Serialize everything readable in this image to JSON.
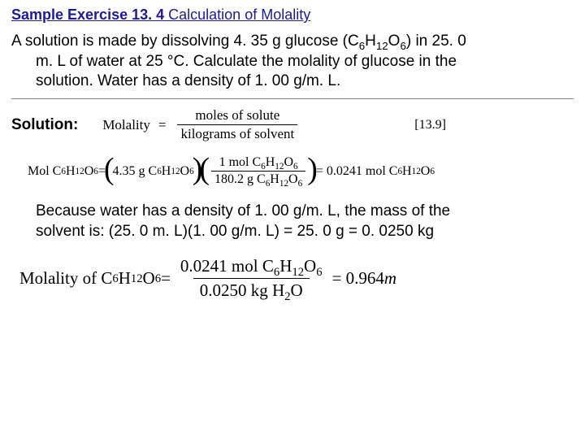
{
  "title": {
    "prefix_bold": "Sample Exercise 13. 4",
    "rest": " Calculation of Molality"
  },
  "problem": {
    "line1": "A solution is made by dissolving 4. 35 g glucose (C",
    "f_sub1": "6",
    "f_mid1": "H",
    "f_sub2": "12",
    "f_mid2": "O",
    "f_sub3": "6",
    "line1_end": ") in 25. 0",
    "line2": "m. L of water at 25 °C. Calculate the molality of glucose in the",
    "line3": "solution. Water has a density of 1. 00 g/m. L."
  },
  "solution_label": "Solution:",
  "molality_def": {
    "lhs": "Molality",
    "eq": "=",
    "num": "moles of solute",
    "den": "kilograms of solvent",
    "ref": "[13.9]"
  },
  "calc1": {
    "lhs_pre": "Mol C",
    "s1": "6",
    "m1": "H",
    "s2": "12",
    "m2": "O",
    "s3": "6",
    "eq": " = ",
    "paren_open": "(",
    "mass": "4.35 g C",
    "ms1": "6",
    "mm1": "H",
    "ms2": "12",
    "mm2": "O",
    "ms3": "6",
    "paren_close": ")",
    "frac_num_pre": "1 mol C",
    "fn_s1": "6",
    "fn_m1": "H",
    "fn_s2": "12",
    "fn_m2": "O",
    "fn_s3": "6",
    "frac_den_pre": "180.2 g C",
    "fd_s1": "6",
    "fd_m1": "H",
    "fd_s2": "12",
    "fd_m2": "O",
    "fd_s3": "6",
    "result_pre": " = 0.0241 mol C",
    "r_s1": "6",
    "r_m1": "H",
    "r_s2": "12",
    "r_m2": "O",
    "r_s3": "6"
  },
  "explain": {
    "line1": "Because water has a density of 1. 00 g/m. L, the mass of the",
    "line2": "solvent is: (25. 0 m. L)(1. 00 g/m. L) = 25. 0 g = 0. 0250 kg"
  },
  "final": {
    "lhs_pre": "Molality of C",
    "s1": "6",
    "m1": "H",
    "s2": "12",
    "m2": "O",
    "s3": "6",
    "eq": " = ",
    "num_pre": "0.0241 mol C",
    "n_s1": "6",
    "n_m1": "H",
    "n_s2": "12",
    "n_m2": "O",
    "n_s3": "6",
    "den_pre": "0.0250 kg H",
    "d_s1": "2",
    "d_m1": "O",
    "result": " = 0.964 ",
    "unit": "m"
  }
}
